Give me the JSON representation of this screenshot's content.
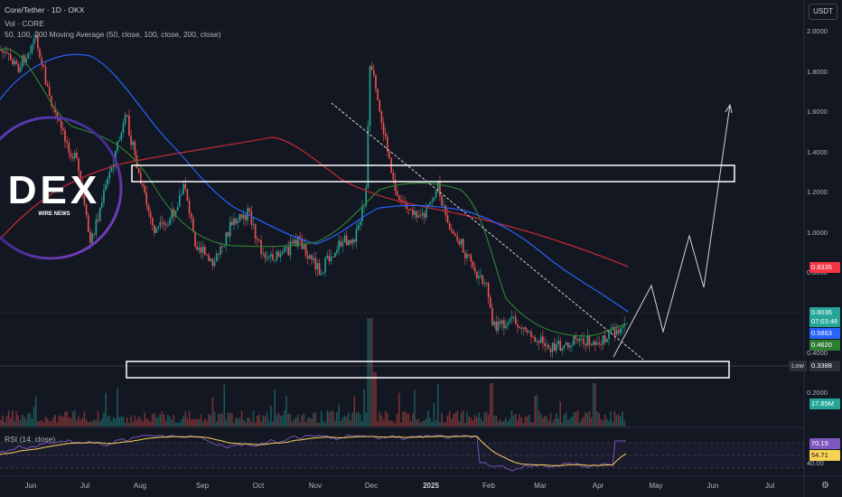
{
  "header": {
    "symbol_line": "Core/Tether · 1D · OKX",
    "volume_line": "Vol · CORE",
    "ma_line": "50, 100, 200 Moving Average (50, close, 100, close, 200, close)",
    "rsi_line": "RSI (14, close)"
  },
  "price_axis": {
    "currency": "USDT",
    "ticks": [
      "2.0000",
      "1.8000",
      "1.6000",
      "1.4000",
      "1.2000",
      "1.0000",
      "0.8000",
      "0.4000",
      "0.2000"
    ],
    "tick_values": [
      2.0,
      1.8,
      1.6,
      1.4,
      1.2,
      1.0,
      0.8,
      0.4,
      0.2
    ],
    "tags": {
      "ma200": {
        "value": "0.8335",
        "color": "#f23645"
      },
      "last": {
        "value": "0.6036",
        "color": "#26a69a"
      },
      "countdown": {
        "value": "07:03:46",
        "color": "#26a69a"
      },
      "ma100": {
        "value": "0.5863",
        "color": "#2962ff"
      },
      "ma50": {
        "value": "0.4620",
        "color": "#2e7d32"
      },
      "low_label": "Low",
      "low": {
        "value": "0.3388",
        "color": "#2a2e39"
      },
      "volume": {
        "value": "17.85M",
        "color": "#26a69a"
      },
      "rsi": {
        "value": "70.19",
        "color": "#7e57c2"
      },
      "rsi_ma": {
        "value": "54.71",
        "color": "#f7d354"
      }
    }
  },
  "time_axis": {
    "labels": [
      "Jun",
      "Jul",
      "Aug",
      "Sep",
      "Oct",
      "Nov",
      "Dec",
      "2025",
      "Feb",
      "Mar",
      "Apr",
      "May",
      "Jun",
      "Jul"
    ],
    "bold": [
      "2025"
    ]
  },
  "watermark": {
    "big": "DEX",
    "small": "WIRE NEWS"
  },
  "colors": {
    "up": "#26a69a",
    "down": "#ef5350",
    "ma50": "#2e7d32",
    "ma100": "#2962ff",
    "ma200": "#b22833",
    "rsi": "#7e57c2",
    "rsi_ma": "#f7d354"
  }
}
